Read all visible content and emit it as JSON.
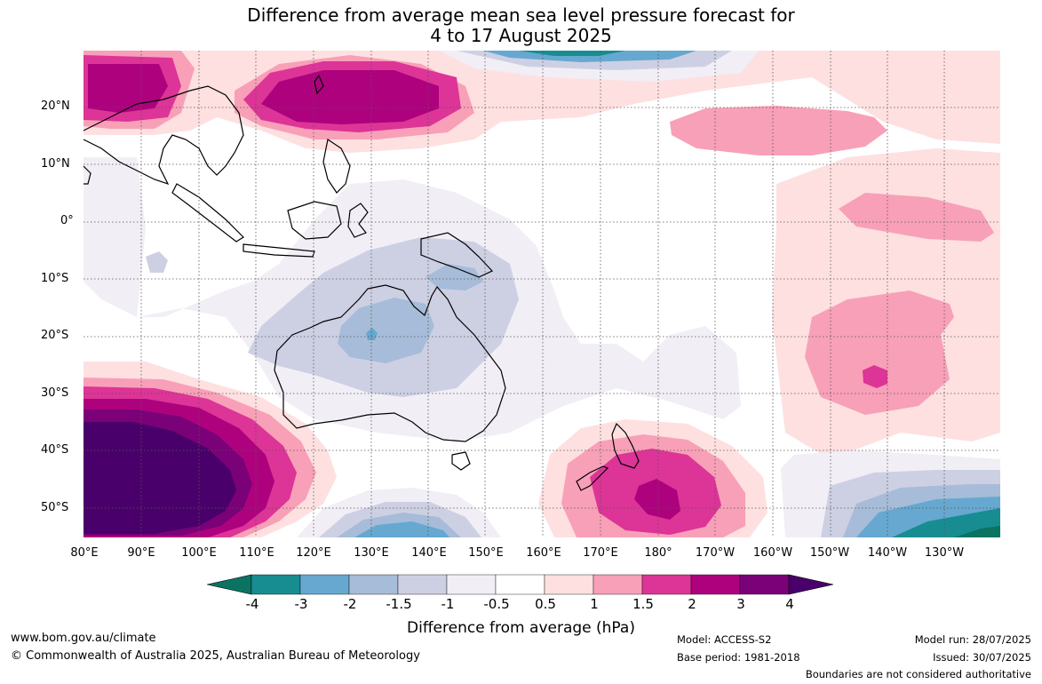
{
  "title": {
    "line1": "Difference from average mean sea level pressure forecast for",
    "line2": "4 to 17 August 2025"
  },
  "map": {
    "lat_labels": [
      "20°N",
      "10°N",
      "0°",
      "10°S",
      "20°S",
      "30°S",
      "40°S",
      "50°S"
    ],
    "lon_labels": [
      "80°E",
      "90°E",
      "100°E",
      "110°E",
      "120°E",
      "130°E",
      "140°E",
      "150°E",
      "160°E",
      "170°E",
      "180°",
      "170°W",
      "160°W",
      "150°W",
      "140°W",
      "130°W"
    ]
  },
  "colorbar": {
    "ticks": [
      "-4",
      "-3",
      "-2",
      "-1.5",
      "-1",
      "-0.5",
      "0.5",
      "1",
      "1.5",
      "2",
      "3",
      "4"
    ],
    "colors": [
      "#0b7362",
      "#178d92",
      "#66a8d0",
      "#a6bcd8",
      "#cdd0e3",
      "#f1eef6",
      "#ffffff",
      "#fee0e0",
      "#f8a0b8",
      "#dd3497",
      "#ae017e",
      "#7a0177",
      "#49006a"
    ],
    "label": "Difference from average (hPa)"
  },
  "footer": {
    "website": "www.bom.gov.au/climate",
    "copyright": "© Commonwealth of Australia 2025, Australian Bureau of Meteorology",
    "model": "Model: ACCESS-S2",
    "base_period": "Base period: 1981-2018",
    "model_run": "Model run: 28/07/2025",
    "issued": "Issued: 30/07/2025",
    "disclaimer": "Boundaries are not considered authoritative"
  }
}
